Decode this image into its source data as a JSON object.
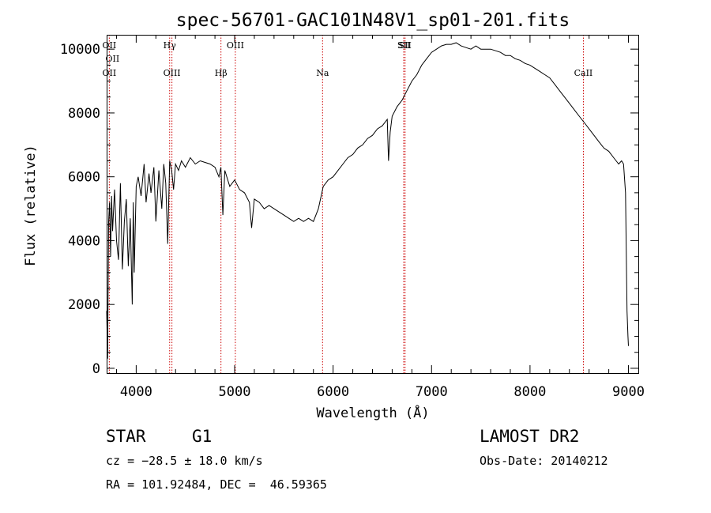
{
  "chart_data": {
    "type": "line",
    "title": "spec-56701-GAC101N48V1_sp01-201.fits",
    "xlabel": "Wavelength (Å)",
    "ylabel": "Flux (relative)",
    "xlim": [
      3700,
      9100
    ],
    "ylim": [
      -150,
      10450
    ],
    "x_ticks": [
      4000,
      5000,
      6000,
      7000,
      8000,
      9000
    ],
    "y_ticks": [
      0,
      2000,
      4000,
      6000,
      8000,
      10000
    ],
    "grid": false,
    "line_color": "#000000",
    "marker_color": "#cc0000",
    "series": [
      {
        "x": [
          3700,
          3710,
          3720,
          3730,
          3740,
          3750,
          3760,
          3780,
          3800,
          3820,
          3840,
          3860,
          3880,
          3900,
          3920,
          3940,
          3960,
          3970,
          3980,
          4000,
          4020,
          4050,
          4080,
          4100,
          4130,
          4150,
          4180,
          4200,
          4230,
          4260,
          4280,
          4300,
          4320,
          4340,
          4360,
          4380,
          4400,
          4430,
          4460,
          4500,
          4550,
          4600,
          4650,
          4700,
          4750,
          4800,
          4840,
          4860,
          4880,
          4900,
          4950,
          5000,
          5050,
          5100,
          5150,
          5172,
          5200,
          5250,
          5300,
          5350,
          5400,
          5450,
          5500,
          5550,
          5600,
          5650,
          5700,
          5750,
          5800,
          5850,
          5893,
          5900,
          5950,
          6000,
          6050,
          6100,
          6150,
          6200,
          6250,
          6300,
          6350,
          6400,
          6450,
          6500,
          6550,
          6563,
          6580,
          6600,
          6650,
          6700,
          6750,
          6800,
          6850,
          6900,
          6950,
          7000,
          7050,
          7100,
          7150,
          7200,
          7250,
          7300,
          7350,
          7400,
          7450,
          7500,
          7550,
          7600,
          7650,
          7700,
          7750,
          7800,
          7850,
          7900,
          7950,
          8000,
          8050,
          8100,
          8150,
          8200,
          8250,
          8300,
          8350,
          8400,
          8450,
          8500,
          8550,
          8600,
          8650,
          8700,
          8750,
          8800,
          8850,
          8900,
          8930,
          8950,
          8970,
          8985,
          8995,
          9000
        ],
        "y": [
          1800,
          300,
          4600,
          5200,
          3500,
          5400,
          4300,
          5600,
          4000,
          3400,
          5800,
          3100,
          4600,
          5300,
          3200,
          4700,
          2000,
          5200,
          3000,
          5700,
          6000,
          5400,
          6400,
          5200,
          6100,
          5500,
          6300,
          4600,
          6200,
          5000,
          6400,
          5800,
          3900,
          6500,
          6200,
          5600,
          6400,
          6200,
          6500,
          6300,
          6600,
          6400,
          6500,
          6450,
          6400,
          6300,
          6000,
          6300,
          4800,
          6200,
          5700,
          5900,
          5600,
          5500,
          5200,
          4400,
          5300,
          5200,
          5000,
          5100,
          5000,
          4900,
          4800,
          4700,
          4600,
          4700,
          4600,
          4700,
          4600,
          5000,
          5600,
          5700,
          5900,
          6000,
          6200,
          6400,
          6600,
          6700,
          6900,
          7000,
          7200,
          7300,
          7500,
          7600,
          7800,
          6500,
          7400,
          7900,
          8200,
          8400,
          8700,
          9000,
          9200,
          9500,
          9700,
          9900,
          10000,
          10100,
          10150,
          10150,
          10200,
          10100,
          10050,
          10000,
          10100,
          10000,
          10000,
          10000,
          9950,
          9900,
          9800,
          9800,
          9700,
          9650,
          9550,
          9500,
          9400,
          9300,
          9200,
          9100,
          8900,
          8700,
          8500,
          8300,
          8100,
          7900,
          7700,
          7500,
          7300,
          7100,
          6900,
          6800,
          6600,
          6400,
          6500,
          6400,
          5500,
          1800,
          1000,
          700
        ]
      }
    ],
    "line_markers": [
      {
        "x": 3727,
        "top": "OII",
        "bottom": "OII"
      },
      {
        "x": 4340,
        "top": "Hγ",
        "bottom": ""
      },
      {
        "x": 4363,
        "top": "",
        "bottom": "OIII"
      },
      {
        "x": 4861,
        "top": "",
        "bottom": "Hβ"
      },
      {
        "x": 5007,
        "top": "OIII",
        "bottom": ""
      },
      {
        "x": 5893,
        "top": "",
        "bottom": "Na"
      },
      {
        "x": 6717,
        "top": "SII",
        "bottom": ""
      },
      {
        "x": 6731,
        "top": "SII",
        "bottom": ""
      },
      {
        "x": 8542,
        "top": "",
        "bottom": "CaII"
      }
    ]
  },
  "info": {
    "class_label": "STAR",
    "subclass_label": "G1",
    "survey_label": "LAMOST DR2",
    "cz_text": "cz = −28.5 ± 18.0 km/s",
    "obs_date_text": "Obs-Date: 20140212",
    "coords_text": "RA = 101.92484, DEC =  46.59365"
  }
}
